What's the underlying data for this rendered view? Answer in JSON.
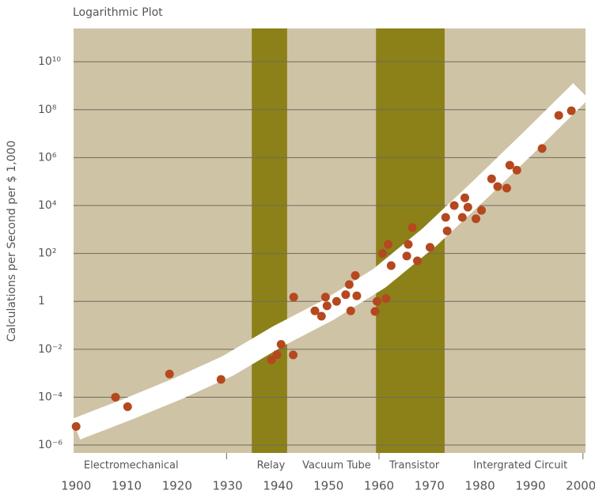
{
  "chart_data": {
    "type": "scatter",
    "title": "Logarithmic Plot",
    "y_label": "Calculations per Second per $ 1,000",
    "log_y": true,
    "grid": true,
    "background": "#cfc3a5",
    "color": "#b5481f",
    "xlim": [
      1899.5,
      2000.9
    ],
    "ylim": [
      4.7e-07,
      246000000000.0
    ],
    "xticks": [
      1900,
      1910,
      1920,
      1930,
      1940,
      1950,
      1960,
      1970,
      1980,
      1990,
      2000
    ],
    "yticks": [
      {
        "value": 1e-06,
        "label": "10⁻⁶"
      },
      {
        "value": 0.0001,
        "label": "10⁻⁴"
      },
      {
        "value": 0.01,
        "label": "10⁻²"
      },
      1,
      {
        "value": 100,
        "label": "10²"
      },
      {
        "value": 10000,
        "label": "10⁴"
      },
      {
        "value": 1000000,
        "label": "10⁶"
      },
      {
        "value": 100000000,
        "label": "10⁸"
      },
      {
        "value": 10000000000,
        "label": "10¹⁰"
      }
    ],
    "bands": [
      {
        "from": 1934.8,
        "to": 1941.8,
        "color": "#8b8118"
      },
      {
        "from": 1959.4,
        "to": 1973.0,
        "color": "#8b8118"
      }
    ],
    "eras": [
      {
        "label": "Electromechanical",
        "x": 1910.9
      },
      {
        "label": "Relay",
        "x": 1938.6
      },
      {
        "label": "Vacuum Tube",
        "x": 1951.6
      },
      {
        "label": "Transistor",
        "x": 1967.0
      },
      {
        "label": "Intergrated Circuit",
        "x": 1988.0
      }
    ],
    "era_ticks": [
      1929.8,
      1960.0,
      2000.4
    ],
    "trend": {
      "color": "#ffffff",
      "x": [
        1900,
        1910,
        1920,
        1930,
        1940,
        1950,
        1960,
        1970,
        1980,
        1990,
        2000
      ],
      "values": [
        4.6e-06,
        3e-05,
        0.00022,
        0.002,
        0.035,
        0.44,
        9,
        480,
        46000,
        5000000,
        600000000
      ]
    },
    "x": [
      1900,
      1907.8,
      1910.2,
      1918.5,
      1928.7,
      1938.7,
      1939.8,
      1940.6,
      1943,
      1943.1,
      1947.3,
      1948.6,
      1949.4,
      1949.7,
      1951.6,
      1953.4,
      1954.1,
      1954.4,
      1955.3,
      1955.6,
      1959.2,
      1959.6,
      1960.7,
      1961.4,
      1961.8,
      1962.4,
      1965.5,
      1965.8,
      1966.6,
      1967.6,
      1970.1,
      1973.2,
      1973.5,
      1974.9,
      1976.5,
      1977,
      1977.6,
      1979.2,
      1980.3,
      1982.3,
      1983.5,
      1985.3,
      1985.9,
      1987.3,
      1992.3,
      1995.6,
      1998.1
    ],
    "values": [
      6e-06,
      0.0001,
      4e-05,
      0.00093,
      0.00055,
      0.0036,
      0.006,
      0.016,
      0.0058,
      1.5,
      0.4,
      0.24,
      1.5,
      0.65,
      1,
      1.9,
      5,
      0.4,
      12,
      1.7,
      0.38,
      1,
      100,
      1.3,
      240,
      31,
      78,
      240,
      1200,
      49,
      180,
      3200,
      870,
      10000,
      3200,
      21000,
      8500,
      2800,
      6300,
      130000,
      62000,
      53000,
      480000,
      300000,
      2400000,
      58000000,
      90000000
    ]
  }
}
